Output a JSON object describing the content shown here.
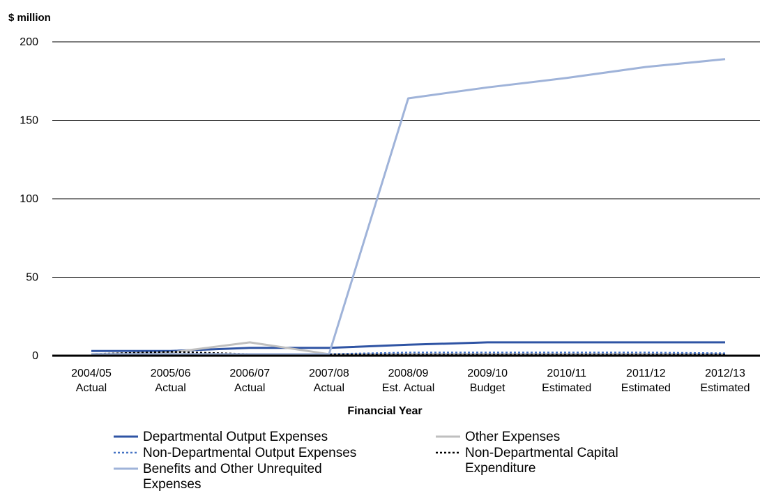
{
  "chart_data": {
    "type": "line",
    "ylabel": "$ million",
    "xlabel": "Financial Year",
    "ylim": [
      0,
      200
    ],
    "yticks": [
      0,
      50,
      100,
      150,
      200
    ],
    "grid": "horizontal",
    "legend_position": "bottom",
    "categories": [
      [
        "2004/05",
        "Actual"
      ],
      [
        "2005/06",
        "Actual"
      ],
      [
        "2006/07",
        "Actual"
      ],
      [
        "2007/08",
        "Actual"
      ],
      [
        "2008/09",
        "Est. Actual"
      ],
      [
        "2009/10",
        "Budget"
      ],
      [
        "2010/11",
        "Estimated"
      ],
      [
        "2011/12",
        "Estimated"
      ],
      [
        "2012/13",
        "Estimated"
      ]
    ],
    "series": [
      {
        "name": "Departmental Output Expenses",
        "color": "#2f54a4",
        "style": "solid",
        "values": [
          3,
          3,
          5,
          5,
          7,
          8.5,
          8.5,
          8.5,
          8.5
        ]
      },
      {
        "name": "Other Expenses",
        "color": "#bfbfbf",
        "style": "solid",
        "values": [
          1,
          2,
          8.5,
          1,
          1,
          1,
          1,
          1,
          1
        ]
      },
      {
        "name": "Non-Departmental Output Expenses",
        "color": "#4472c4",
        "style": "dotted",
        "values": [
          1,
          1,
          1,
          1,
          2,
          2,
          2,
          2,
          1.5
        ]
      },
      {
        "name": "Non-Departmental Capital Expenditure",
        "color": "#000000",
        "style": "dotted",
        "values": [
          1,
          2.5,
          1,
          0.5,
          0.5,
          0.5,
          0.5,
          0.5,
          0.5
        ]
      },
      {
        "name": "Benefits and Other Unrequited Expenses",
        "color": "#9fb3d9",
        "style": "solid",
        "values": [
          1,
          1,
          1,
          1,
          164,
          171,
          177,
          184,
          189
        ]
      }
    ],
    "legend": [
      {
        "lines": [
          "Departmental Output Expenses"
        ],
        "series": 0
      },
      {
        "lines": [
          "Other Expenses"
        ],
        "series": 1
      },
      {
        "lines": [
          "Non-Departmental Output Expenses"
        ],
        "series": 2
      },
      {
        "lines": [
          "Non-Departmental Capital",
          "Expenditure"
        ],
        "series": 3
      },
      {
        "lines": [
          "Benefits and Other Unrequited",
          "Expenses"
        ],
        "series": 4
      }
    ]
  }
}
